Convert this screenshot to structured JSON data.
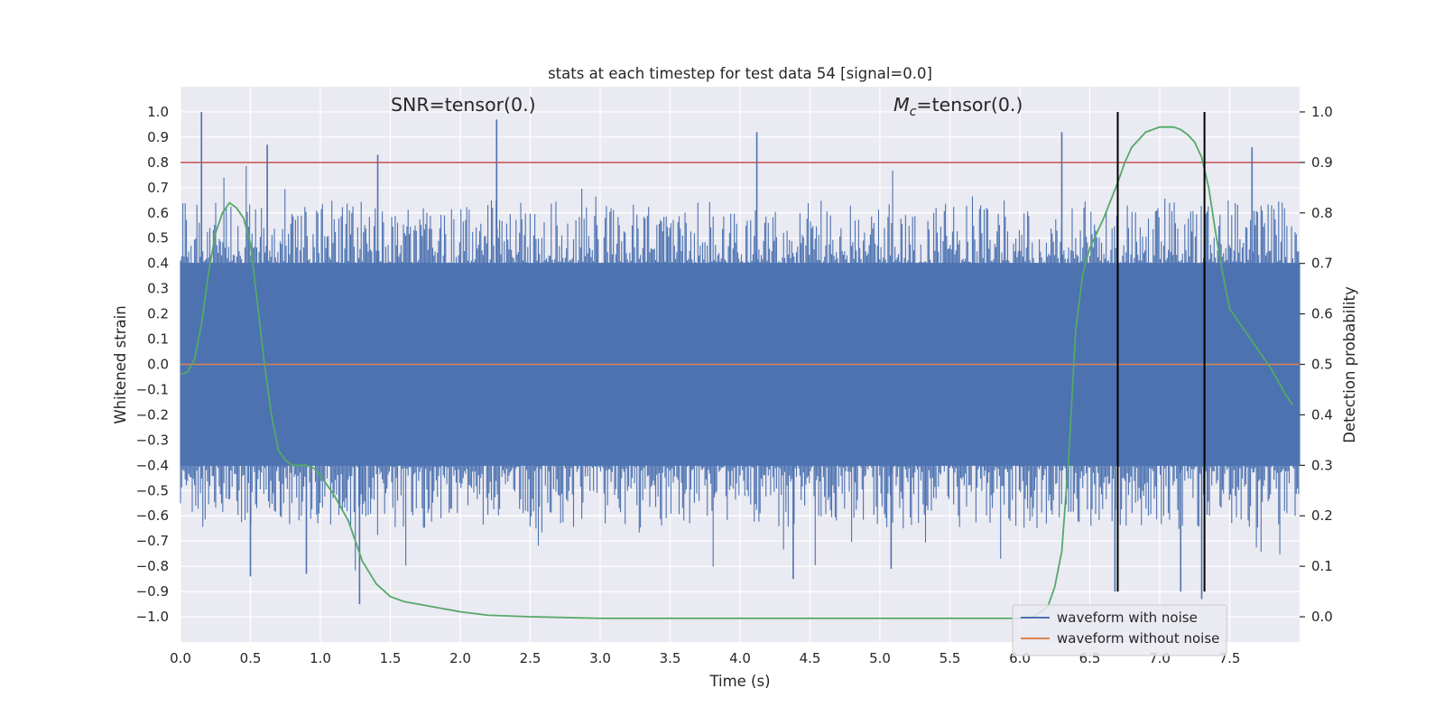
{
  "chart_data": {
    "type": "line",
    "title": "stats at each timestep for test data 54 [signal=0.0]",
    "xlabel": "Time (s)",
    "ylabel_left": "Whitened strain",
    "ylabel_right": "Detection probability",
    "xlim": [
      0.0,
      8.0
    ],
    "ylim_left": [
      -1.1,
      1.1
    ],
    "ylim_right": [
      -0.05,
      1.05
    ],
    "x_ticks": [
      0.0,
      0.5,
      1.0,
      1.5,
      2.0,
      2.5,
      3.0,
      3.5,
      4.0,
      4.5,
      5.0,
      5.5,
      6.0,
      6.5,
      7.0,
      7.5
    ],
    "x_tick_labels": [
      "0.0",
      "0.5",
      "1.0",
      "1.5",
      "2.0",
      "2.5",
      "3.0",
      "3.5",
      "4.0",
      "4.5",
      "5.0",
      "5.5",
      "6.0",
      "6.5",
      "7.0",
      "7.5"
    ],
    "y_left_ticks": [
      -1.0,
      -0.9,
      -0.8,
      -0.7,
      -0.6,
      -0.5,
      -0.4,
      -0.3,
      -0.2,
      -0.1,
      0.0,
      0.1,
      0.2,
      0.3,
      0.4,
      0.5,
      0.6,
      0.7,
      0.8,
      0.9,
      1.0
    ],
    "y_left_tick_labels": [
      "−1.0",
      "−0.9",
      "−0.8",
      "−0.7",
      "−0.6",
      "−0.5",
      "−0.4",
      "−0.3",
      "−0.2",
      "−0.1",
      "0.0",
      "0.1",
      "0.2",
      "0.3",
      "0.4",
      "0.5",
      "0.6",
      "0.7",
      "0.8",
      "0.9",
      "1.0"
    ],
    "y_right_ticks": [
      0.0,
      0.1,
      0.2,
      0.3,
      0.4,
      0.5,
      0.6,
      0.7,
      0.8,
      0.9,
      1.0
    ],
    "y_right_tick_labels": [
      "0.0",
      "0.1",
      "0.2",
      "0.3",
      "0.4",
      "0.5",
      "0.6",
      "0.7",
      "0.8",
      "0.9",
      "1.0"
    ],
    "annotations": {
      "snr": "SNR=tensor(0.)",
      "mc_symbol": "M",
      "mc_sub": "c",
      "mc_rest": "=tensor(0.)"
    },
    "grid": true,
    "legend_position": "lower-right",
    "legend": [
      {
        "name": "waveform with noise",
        "color": "#4c72b0"
      },
      {
        "name": "waveform without noise",
        "color": "#dd8452"
      }
    ],
    "series": [
      {
        "name": "waveform with noise",
        "axis": "left",
        "color": "#4c72b0",
        "style": "dense-noise",
        "band_core": 0.4,
        "band_peak": 0.65,
        "peaks": [
          {
            "x": 0.15,
            "y": 1.0
          },
          {
            "x": 0.62,
            "y": 0.87
          },
          {
            "x": 1.41,
            "y": 0.83
          },
          {
            "x": 2.26,
            "y": 0.97
          },
          {
            "x": 4.12,
            "y": 0.92
          },
          {
            "x": 6.3,
            "y": 0.92
          },
          {
            "x": 7.66,
            "y": 0.86
          },
          {
            "x": 1.28,
            "y": -0.95
          },
          {
            "x": 0.5,
            "y": -0.84
          },
          {
            "x": 0.9,
            "y": -0.83
          },
          {
            "x": 4.38,
            "y": -0.85
          },
          {
            "x": 5.08,
            "y": -0.81
          },
          {
            "x": 7.15,
            "y": -0.9
          },
          {
            "x": 7.3,
            "y": -0.93
          },
          {
            "x": 6.68,
            "y": -0.9
          }
        ]
      },
      {
        "name": "waveform without noise",
        "axis": "left",
        "color": "#dd8452",
        "x": [
          0.0,
          8.0
        ],
        "y": [
          0.0,
          0.0
        ]
      },
      {
        "name": "detection probability",
        "axis": "right",
        "color": "#55a868",
        "x": [
          0.0,
          0.05,
          0.1,
          0.15,
          0.2,
          0.25,
          0.3,
          0.35,
          0.4,
          0.45,
          0.5,
          0.55,
          0.6,
          0.65,
          0.7,
          0.75,
          0.8,
          0.85,
          0.9,
          0.95,
          1.0,
          1.1,
          1.2,
          1.3,
          1.4,
          1.5,
          1.6,
          1.8,
          2.0,
          2.2,
          2.5,
          3.0,
          4.0,
          5.0,
          6.0,
          6.1,
          6.2,
          6.25,
          6.3,
          6.35,
          6.4,
          6.45,
          6.5,
          6.6,
          6.7,
          6.75,
          6.8,
          6.9,
          7.0,
          7.05,
          7.1,
          7.15,
          7.2,
          7.25,
          7.3,
          7.35,
          7.4,
          7.45,
          7.5,
          7.6,
          7.7,
          7.8,
          7.9,
          7.95
        ],
        "y": [
          0.48,
          0.485,
          0.51,
          0.58,
          0.68,
          0.76,
          0.8,
          0.82,
          0.81,
          0.79,
          0.74,
          0.62,
          0.5,
          0.4,
          0.33,
          0.31,
          0.3,
          0.3,
          0.3,
          0.295,
          0.28,
          0.24,
          0.19,
          0.11,
          0.065,
          0.04,
          0.03,
          0.02,
          0.01,
          0.003,
          0.0,
          -0.003,
          -0.003,
          -0.003,
          -0.003,
          0.0,
          0.02,
          0.06,
          0.13,
          0.32,
          0.57,
          0.68,
          0.73,
          0.79,
          0.86,
          0.9,
          0.93,
          0.96,
          0.97,
          0.97,
          0.97,
          0.965,
          0.955,
          0.94,
          0.91,
          0.85,
          0.76,
          0.68,
          0.61,
          0.57,
          0.53,
          0.49,
          0.44,
          0.42
        ]
      }
    ],
    "hlines": [
      {
        "axis": "left",
        "y": 0.8,
        "color": "#c44e52"
      }
    ],
    "vlines": [
      {
        "x": 6.7,
        "y_from": -0.9,
        "y_to": 1.0,
        "color": "#000000"
      },
      {
        "x": 7.32,
        "y_from": -0.9,
        "y_to": 1.0,
        "color": "#000000"
      }
    ]
  }
}
